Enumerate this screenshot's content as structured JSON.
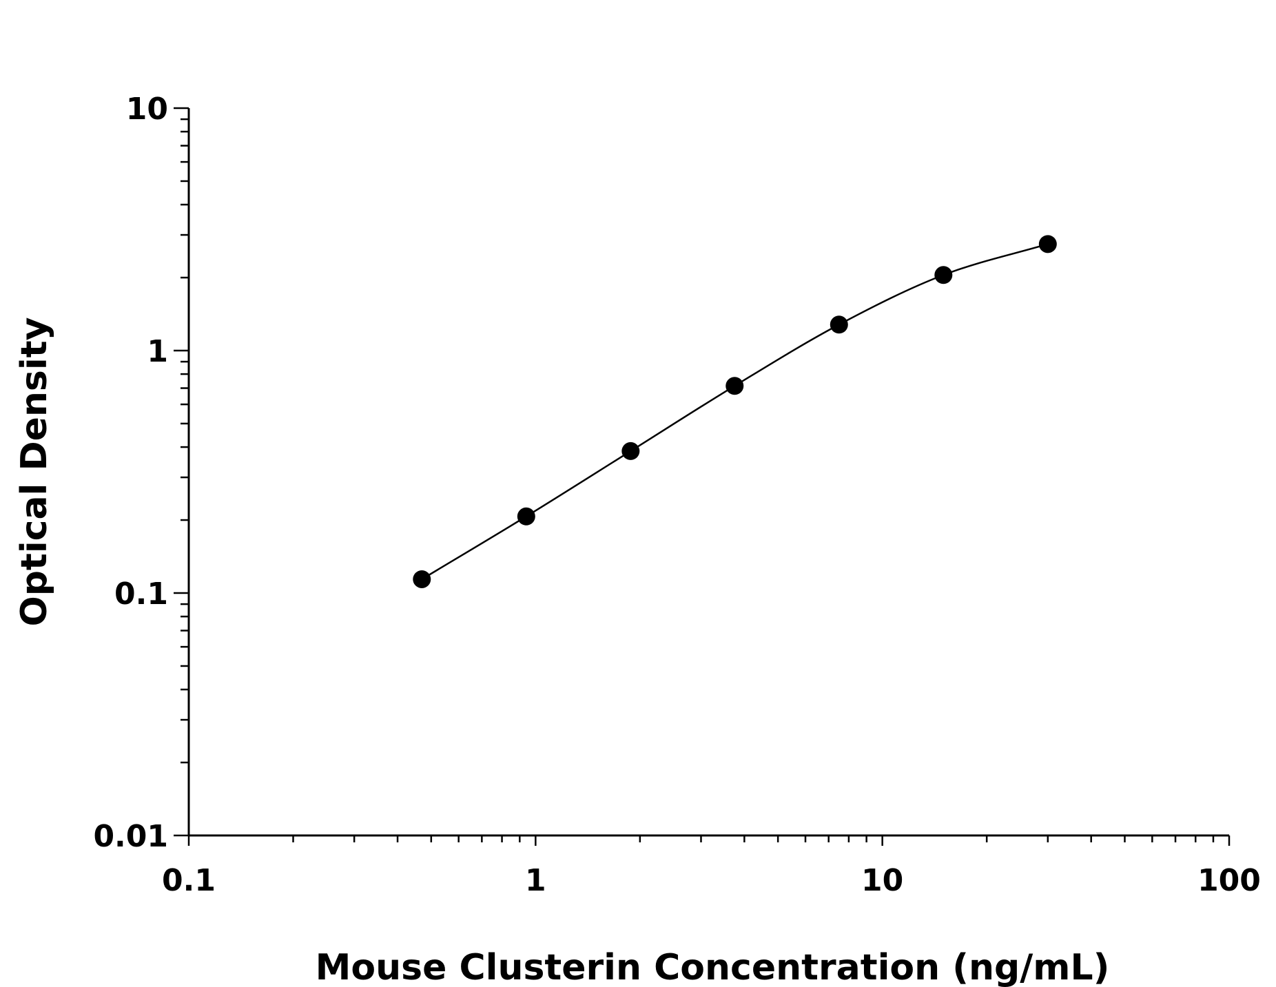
{
  "chart_data": {
    "type": "scatter",
    "xlabel": "Mouse Clusterin Concentration (ng/mL)",
    "ylabel": "Optical Density",
    "x_scale": "log",
    "y_scale": "log",
    "xlim": [
      0.1,
      100
    ],
    "ylim": [
      0.01,
      10
    ],
    "x_ticks": [
      "0.1",
      "1",
      "10",
      "100"
    ],
    "y_ticks": [
      "0.01",
      "0.1",
      "1",
      "10"
    ],
    "grid": false,
    "legend": "none",
    "fitted_curve": true,
    "series": [
      {
        "x": [
          0.47,
          0.94,
          1.88,
          3.75,
          7.5,
          15,
          30
        ],
        "y": [
          0.114,
          0.207,
          0.385,
          0.715,
          1.28,
          2.05,
          2.75
        ]
      }
    ],
    "colors": {
      "marker": "#000000",
      "curve": "#000000",
      "axis": "#000000"
    }
  }
}
